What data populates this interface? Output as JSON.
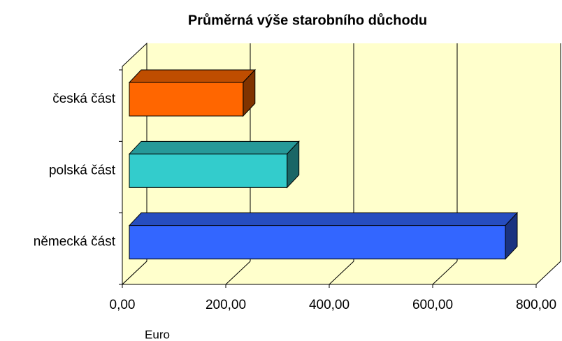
{
  "chart_data": {
    "type": "bar3d_horizontal",
    "title": "Průměrná výše starobního důchodu",
    "categories": [
      "česká část",
      "polská část",
      "německá část"
    ],
    "values": [
      220,
      305,
      727
    ],
    "colors": [
      "#ff6600",
      "#33cccc",
      "#3366ff"
    ],
    "xlim": [
      0,
      800
    ],
    "xticks": [
      {
        "value": 0,
        "label": "0,00"
      },
      {
        "value": 200,
        "label": "200,00"
      },
      {
        "value": 400,
        "label": "400,00"
      },
      {
        "value": 600,
        "label": "600,00"
      },
      {
        "value": 800,
        "label": "800,00"
      }
    ],
    "xlabel": "Euro",
    "grid": true
  }
}
